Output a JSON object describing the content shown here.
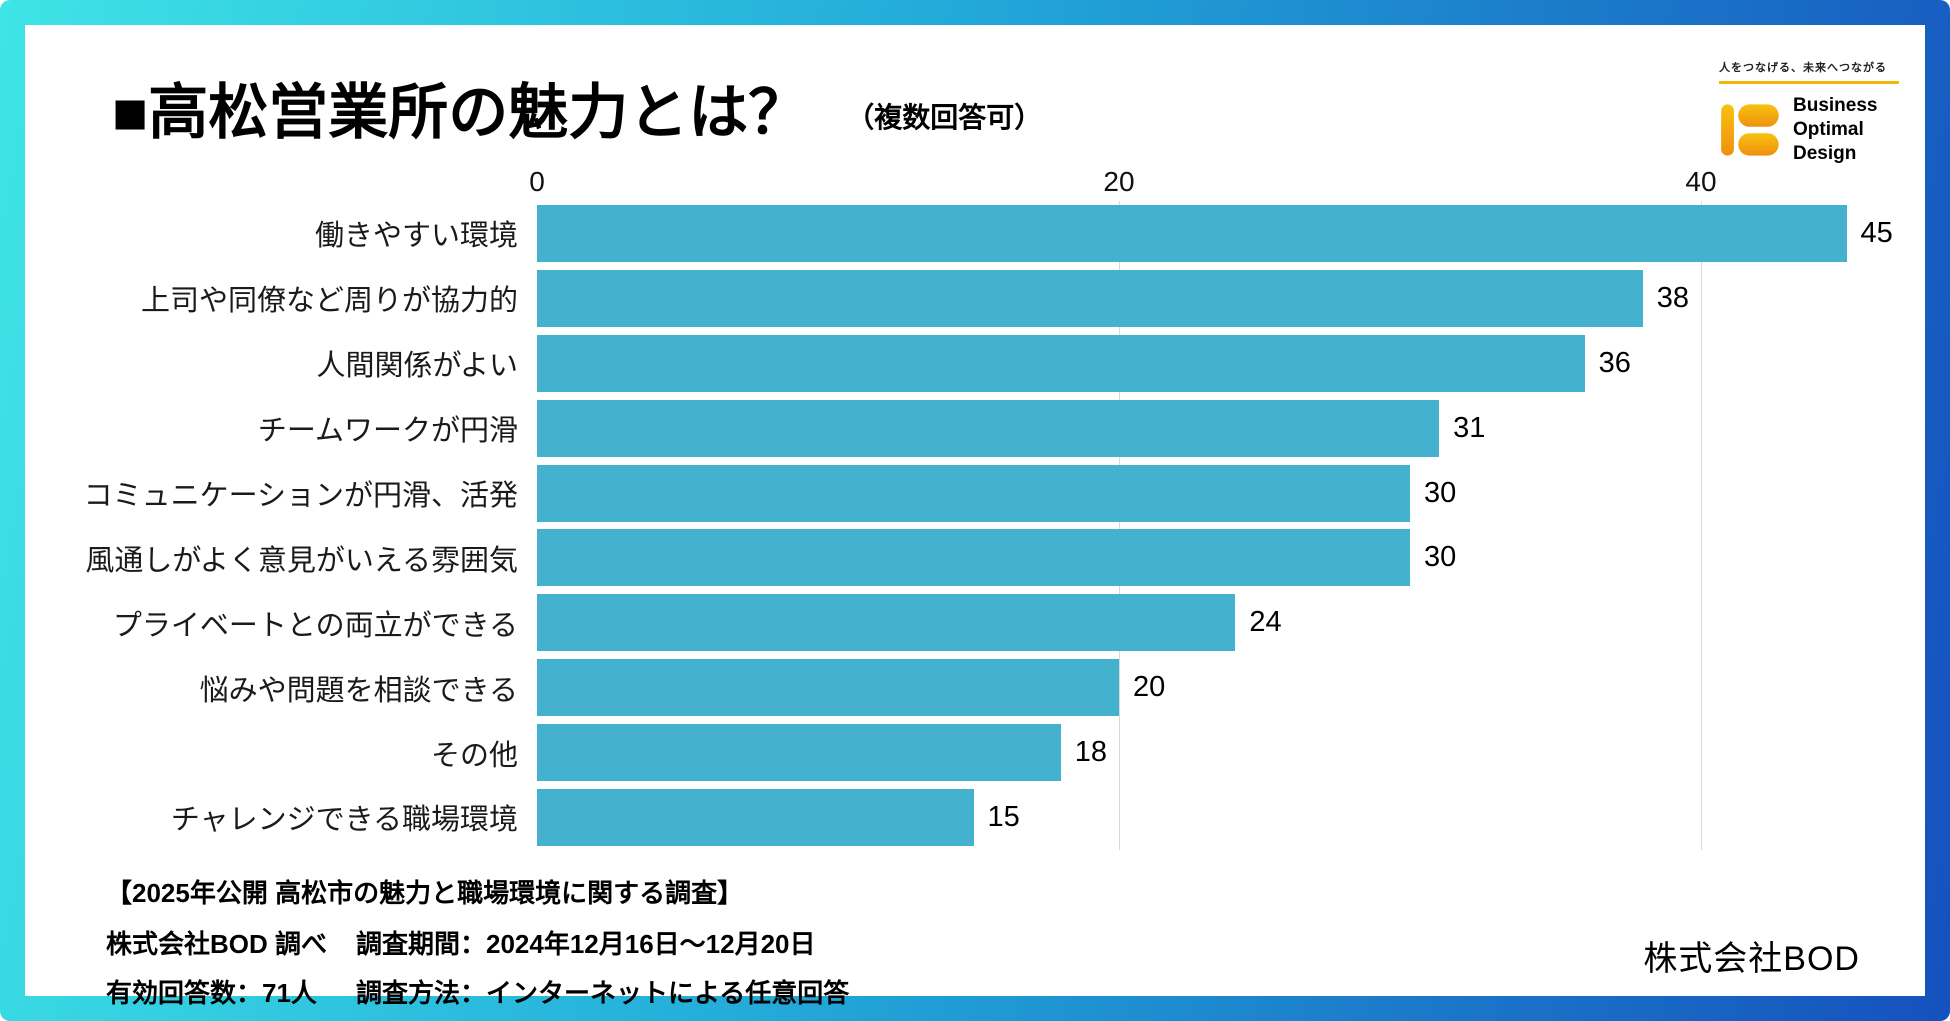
{
  "header": {
    "title": "■高松営業所の魅力とは？",
    "subtitle": "（複数回答可）"
  },
  "logo": {
    "tagline": "人をつなげる、未来へつながる",
    "name_lines": [
      "Business",
      "Optimal",
      "Design"
    ],
    "mark_color_top": "#f7c20e",
    "mark_color_bottom": "#ef9010"
  },
  "chart_data": {
    "type": "bar",
    "orientation": "horizontal",
    "title": "高松営業所の魅力とは？（複数回答可）",
    "categories": [
      "働きやすい環境",
      "上司や同僚など周りが協力的",
      "人間関係がよい",
      "チームワークが円滑",
      "コミュニケーションが円滑、活発",
      "風通しがよく意見がいえる雰囲気",
      "プライベートとの両立ができる",
      "悩みや問題を相談できる",
      "その他",
      "チャレンジできる職場環境"
    ],
    "values": [
      45,
      38,
      36,
      31,
      30,
      30,
      24,
      20,
      18,
      15
    ],
    "xlim": [
      0,
      45
    ],
    "x_ticks": [
      0,
      20,
      40
    ],
    "bar_color": "#44b2ce",
    "grid": true,
    "legend": false
  },
  "footer": {
    "heading": "【2025年公開 高松市の魅力と職場環境に関する調査】",
    "row1_left": "株式会社BOD 調べ",
    "row1_right": "調査期間：2024年12月16日～12月20日",
    "row2_left": "有効回答数：71人",
    "row2_right": "調査方法：インターネットによる任意回答",
    "company": "株式会社BOD"
  },
  "colors": {
    "frame_gradient_left": "#3ee4e6",
    "frame_gradient_right": "#1551bd",
    "bar": "#44b2ce",
    "gridline": "#d9d9d9",
    "logo_accent": "#f2b705"
  }
}
